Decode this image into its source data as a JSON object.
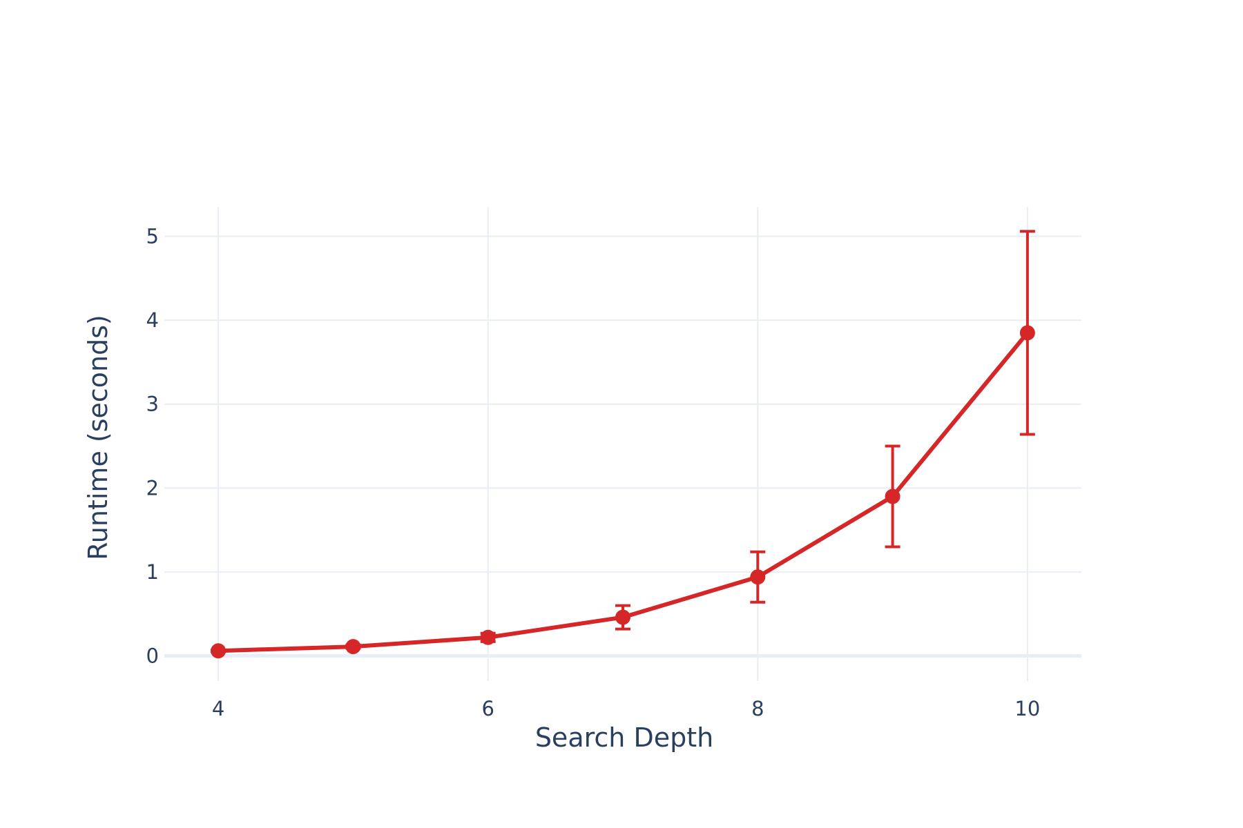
{
  "chart_data": {
    "type": "line",
    "title": "",
    "xlabel": "Search Depth",
    "ylabel": "Runtime (seconds)",
    "xlim": [
      3.6,
      10.4
    ],
    "ylim": [
      -0.3,
      5.35
    ],
    "x_ticks": [
      4,
      6,
      8,
      10
    ],
    "y_ticks": [
      0,
      1,
      2,
      3,
      4,
      5
    ],
    "grid": true,
    "legend": "none",
    "series": [
      {
        "color": "#D62728",
        "x": [
          4,
          5,
          6,
          7,
          8,
          9,
          10
        ],
        "y": [
          0.06,
          0.11,
          0.22,
          0.46,
          0.94,
          1.9,
          3.85
        ],
        "error_y": [
          0.01,
          0.02,
          0.05,
          0.14,
          0.3,
          0.6,
          1.21
        ]
      }
    ]
  }
}
